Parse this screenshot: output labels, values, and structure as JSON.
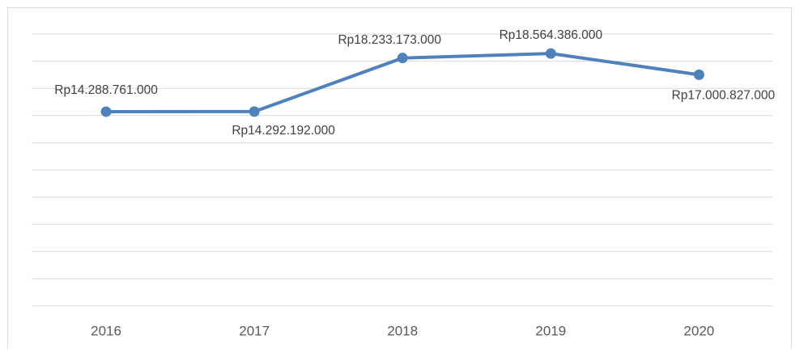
{
  "chart_data": {
    "type": "line",
    "categories": [
      "2016",
      "2017",
      "2018",
      "2019",
      "2020"
    ],
    "series": [
      {
        "color": "#4f81bd",
        "values": [
          14288761000,
          14292192000,
          18233173000,
          18564386000,
          17000827000
        ],
        "value_labels": [
          "Rp14.288.761.000",
          "Rp14.292.192.000",
          "Rp18.233.173.000",
          "Rp18.564.386.000",
          "Rp17.000.827.000"
        ]
      }
    ],
    "ylim": [
      0,
      20000000000
    ],
    "yticks": [
      0,
      2000000000,
      4000000000,
      6000000000,
      8000000000,
      10000000000,
      12000000000,
      14000000000,
      16000000000,
      18000000000,
      20000000000
    ],
    "grid": true
  }
}
